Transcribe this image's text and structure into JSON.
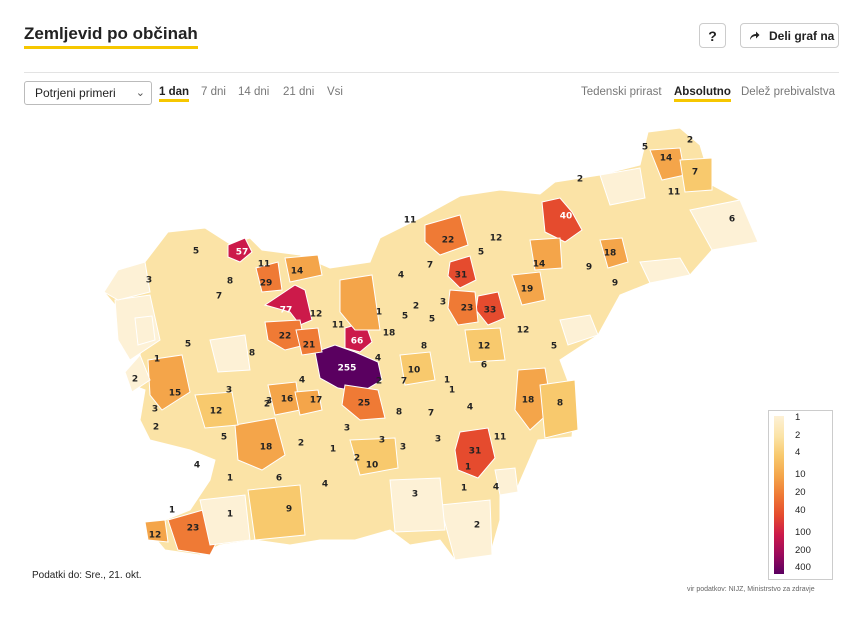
{
  "header": {
    "title": "Zemljevid po občinah",
    "help_label": "?",
    "share_label": "Deli graf na"
  },
  "controls": {
    "select_value": "Potrjeni primeri",
    "periods": [
      "1 dan",
      "7 dni",
      "14 dni",
      "21 dni",
      "Vsi"
    ],
    "active_period": "1 dan",
    "modes": [
      "Tedenski prirast",
      "Absolutno",
      "Delež prebivalstva"
    ],
    "active_mode": "Absolutno"
  },
  "legend": {
    "values": [
      "1",
      "2",
      "4",
      "10",
      "20",
      "40",
      "100",
      "200",
      "400"
    ],
    "colors": [
      "#fdf1d6",
      "#fbe3a6",
      "#f8c96d",
      "#f4a54a",
      "#ef7a35",
      "#e54b2e",
      "#cc1a4a",
      "#9a0a5c",
      "#5a0060"
    ]
  },
  "footer": {
    "data_date": "Podatki do: Sre., 21. okt.",
    "source": "vir podatkov: NIJZ, Ministrstvo za zdravje"
  },
  "map_labels": [
    {
      "v": "255"
    },
    {
      "v": "77"
    },
    {
      "v": "66"
    },
    {
      "v": "57"
    },
    {
      "v": "40"
    },
    {
      "v": "33"
    },
    {
      "v": "31"
    },
    {
      "v": "31"
    },
    {
      "v": "29"
    },
    {
      "v": "25"
    },
    {
      "v": "23"
    },
    {
      "v": "23"
    },
    {
      "v": "22"
    },
    {
      "v": "22"
    },
    {
      "v": "21"
    },
    {
      "v": "19"
    },
    {
      "v": "18"
    },
    {
      "v": "18"
    },
    {
      "v": "18"
    },
    {
      "v": "18"
    },
    {
      "v": "17"
    },
    {
      "v": "16"
    },
    {
      "v": "15"
    },
    {
      "v": "14"
    },
    {
      "v": "14"
    },
    {
      "v": "14"
    },
    {
      "v": "12"
    },
    {
      "v": "12"
    },
    {
      "v": "12"
    },
    {
      "v": "12"
    },
    {
      "v": "12"
    },
    {
      "v": "12"
    },
    {
      "v": "11"
    },
    {
      "v": "11"
    },
    {
      "v": "11"
    },
    {
      "v": "11"
    },
    {
      "v": "11"
    },
    {
      "v": "10"
    },
    {
      "v": "10"
    },
    {
      "v": "9"
    },
    {
      "v": "9"
    },
    {
      "v": "9"
    },
    {
      "v": "8"
    },
    {
      "v": "8"
    },
    {
      "v": "8"
    },
    {
      "v": "8"
    },
    {
      "v": "8"
    },
    {
      "v": "7"
    },
    {
      "v": "7"
    },
    {
      "v": "7"
    },
    {
      "v": "7"
    },
    {
      "v": "7"
    },
    {
      "v": "6"
    },
    {
      "v": "6"
    },
    {
      "v": "6"
    },
    {
      "v": "5"
    },
    {
      "v": "5"
    },
    {
      "v": "5"
    },
    {
      "v": "5"
    },
    {
      "v": "5"
    },
    {
      "v": "5"
    },
    {
      "v": "5"
    },
    {
      "v": "5"
    },
    {
      "v": "4"
    },
    {
      "v": "4"
    },
    {
      "v": "4"
    },
    {
      "v": "4"
    },
    {
      "v": "4"
    },
    {
      "v": "4"
    },
    {
      "v": "4"
    },
    {
      "v": "3"
    },
    {
      "v": "3"
    },
    {
      "v": "3"
    },
    {
      "v": "3"
    },
    {
      "v": "3"
    },
    {
      "v": "3"
    },
    {
      "v": "3"
    },
    {
      "v": "3"
    },
    {
      "v": "3"
    },
    {
      "v": "3"
    },
    {
      "v": "2"
    },
    {
      "v": "2"
    },
    {
      "v": "2"
    },
    {
      "v": "2"
    },
    {
      "v": "2"
    },
    {
      "v": "2"
    },
    {
      "v": "2"
    },
    {
      "v": "2"
    },
    {
      "v": "2"
    },
    {
      "v": "2"
    },
    {
      "v": "1"
    },
    {
      "v": "1"
    },
    {
      "v": "1"
    },
    {
      "v": "1"
    },
    {
      "v": "1"
    },
    {
      "v": "1"
    },
    {
      "v": "1"
    },
    {
      "v": "1"
    },
    {
      "v": "1"
    },
    {
      "v": "1"
    }
  ]
}
